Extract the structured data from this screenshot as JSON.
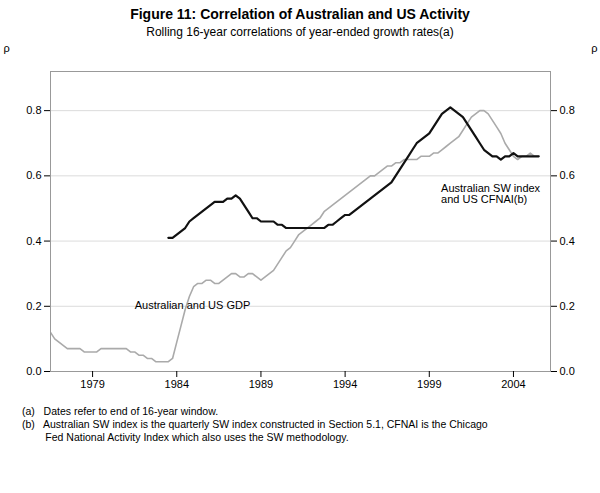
{
  "chart_data": {
    "type": "line",
    "title": "Figure 11: Correlation of Australian and US Activity",
    "subtitle": "Rolling 16-year correlations of year-ended growth rates(a)",
    "ylabel": "ρ",
    "y2label": "ρ",
    "xlim": [
      1976.5,
      2006.2
    ],
    "xticks": [
      1979,
      1984,
      1989,
      1994,
      1999,
      2004
    ],
    "ylim": [
      0.0,
      0.92
    ],
    "yticks": [
      {
        "value": 0.0,
        "label": "0.0"
      },
      0.2,
      0.4,
      0.6,
      0.8
    ],
    "y2lim": [
      0.0,
      0.92
    ],
    "y2ticks": [
      {
        "value": 0.0,
        "label": "0.0"
      },
      0.2,
      0.4,
      0.6,
      0.8
    ],
    "grid": true,
    "series": [
      {
        "color": "#aaaaaa",
        "x": [
          1976.5,
          1976.75,
          1977.0,
          1977.25,
          1977.5,
          1977.75,
          1978.0,
          1978.25,
          1978.5,
          1978.75,
          1979.0,
          1979.25,
          1979.5,
          1979.75,
          1980.0,
          1980.25,
          1980.5,
          1980.75,
          1981.0,
          1981.25,
          1981.5,
          1981.75,
          1982.0,
          1982.25,
          1982.5,
          1982.75,
          1983.0,
          1983.25,
          1983.5,
          1983.75,
          1984.0,
          1984.25,
          1984.5,
          1984.75,
          1985.0,
          1985.25,
          1985.5,
          1985.75,
          1986.0,
          1986.25,
          1986.5,
          1986.75,
          1987.0,
          1987.25,
          1987.5,
          1987.75,
          1988.0,
          1988.25,
          1988.5,
          1988.75,
          1989.0,
          1989.25,
          1989.5,
          1989.75,
          1990.0,
          1990.25,
          1990.5,
          1990.75,
          1991.0,
          1991.25,
          1991.5,
          1991.75,
          1992.0,
          1992.25,
          1992.5,
          1992.75,
          1993.0,
          1993.25,
          1993.5,
          1993.75,
          1994.0,
          1994.25,
          1994.5,
          1994.75,
          1995.0,
          1995.25,
          1995.5,
          1995.75,
          1996.0,
          1996.25,
          1996.5,
          1996.75,
          1997.0,
          1997.25,
          1997.5,
          1997.75,
          1998.0,
          1998.25,
          1998.5,
          1998.75,
          1999.0,
          1999.25,
          1999.5,
          1999.75,
          2000.0,
          2000.25,
          2000.5,
          2000.75,
          2001.0,
          2001.25,
          2001.5,
          2001.75,
          2002.0,
          2002.25,
          2002.5,
          2002.75,
          2003.0,
          2003.25,
          2003.5,
          2003.75,
          2004.0,
          2004.25,
          2004.5,
          2004.75,
          2005.0,
          2005.25,
          2005.5
        ],
        "values": [
          0.12,
          0.1,
          0.09,
          0.08,
          0.07,
          0.07,
          0.07,
          0.07,
          0.06,
          0.06,
          0.06,
          0.06,
          0.07,
          0.07,
          0.07,
          0.07,
          0.07,
          0.07,
          0.07,
          0.06,
          0.06,
          0.05,
          0.05,
          0.04,
          0.04,
          0.03,
          0.03,
          0.03,
          0.03,
          0.04,
          0.09,
          0.14,
          0.19,
          0.23,
          0.26,
          0.27,
          0.27,
          0.28,
          0.28,
          0.27,
          0.27,
          0.28,
          0.29,
          0.3,
          0.3,
          0.29,
          0.29,
          0.3,
          0.3,
          0.29,
          0.28,
          0.29,
          0.3,
          0.31,
          0.33,
          0.35,
          0.37,
          0.38,
          0.4,
          0.42,
          0.43,
          0.44,
          0.45,
          0.46,
          0.47,
          0.49,
          0.5,
          0.51,
          0.52,
          0.53,
          0.54,
          0.55,
          0.56,
          0.57,
          0.58,
          0.59,
          0.6,
          0.6,
          0.61,
          0.62,
          0.63,
          0.63,
          0.64,
          0.64,
          0.65,
          0.65,
          0.65,
          0.65,
          0.66,
          0.66,
          0.66,
          0.67,
          0.67,
          0.68,
          0.69,
          0.7,
          0.71,
          0.72,
          0.74,
          0.76,
          0.78,
          0.79,
          0.8,
          0.8,
          0.79,
          0.77,
          0.75,
          0.73,
          0.7,
          0.68,
          0.66,
          0.65,
          0.66,
          0.66,
          0.67,
          0.66,
          0.66
        ]
      },
      {
        "color": "#111111",
        "x": [
          1983.5,
          1983.75,
          1984.0,
          1984.25,
          1984.5,
          1984.75,
          1985.0,
          1985.25,
          1985.5,
          1985.75,
          1986.0,
          1986.25,
          1986.5,
          1986.75,
          1987.0,
          1987.25,
          1987.5,
          1987.75,
          1988.0,
          1988.25,
          1988.5,
          1988.75,
          1989.0,
          1989.25,
          1989.5,
          1989.75,
          1990.0,
          1990.25,
          1990.5,
          1990.75,
          1991.0,
          1991.25,
          1991.5,
          1991.75,
          1992.0,
          1992.25,
          1992.5,
          1992.75,
          1993.0,
          1993.25,
          1993.5,
          1993.75,
          1994.0,
          1994.25,
          1994.5,
          1994.75,
          1995.0,
          1995.25,
          1995.5,
          1995.75,
          1996.0,
          1996.25,
          1996.5,
          1996.75,
          1997.0,
          1997.25,
          1997.5,
          1997.75,
          1998.0,
          1998.25,
          1998.5,
          1998.75,
          1999.0,
          1999.25,
          1999.5,
          1999.75,
          2000.0,
          2000.25,
          2000.5,
          2000.75,
          2001.0,
          2001.25,
          2001.5,
          2001.75,
          2002.0,
          2002.25,
          2002.5,
          2002.75,
          2003.0,
          2003.25,
          2003.5,
          2003.75,
          2004.0,
          2004.25,
          2004.5,
          2004.75,
          2005.0,
          2005.25,
          2005.5
        ],
        "values": [
          0.41,
          0.41,
          0.42,
          0.43,
          0.44,
          0.46,
          0.47,
          0.48,
          0.49,
          0.5,
          0.51,
          0.52,
          0.52,
          0.52,
          0.53,
          0.53,
          0.54,
          0.53,
          0.51,
          0.49,
          0.47,
          0.47,
          0.46,
          0.46,
          0.46,
          0.46,
          0.45,
          0.45,
          0.44,
          0.44,
          0.44,
          0.44,
          0.44,
          0.44,
          0.44,
          0.44,
          0.44,
          0.44,
          0.45,
          0.45,
          0.46,
          0.47,
          0.48,
          0.48,
          0.49,
          0.5,
          0.51,
          0.52,
          0.53,
          0.54,
          0.55,
          0.56,
          0.57,
          0.58,
          0.6,
          0.62,
          0.64,
          0.66,
          0.68,
          0.7,
          0.71,
          0.72,
          0.73,
          0.75,
          0.77,
          0.79,
          0.8,
          0.81,
          0.8,
          0.79,
          0.78,
          0.76,
          0.74,
          0.72,
          0.7,
          0.68,
          0.67,
          0.66,
          0.66,
          0.65,
          0.66,
          0.66,
          0.67,
          0.66,
          0.66,
          0.66,
          0.66,
          0.66,
          0.66
        ]
      }
    ],
    "annotations": [
      {
        "text": "Australian and US GDP",
        "x": 1981.5,
        "y": 0.215
      },
      {
        "text": "Australian SW index\nand US CFNAI(b)",
        "x": 1999.7,
        "y": 0.575
      }
    ],
    "notes": [
      "(a)   Dates refer to end of 16-year window.",
      "(b)   Australian SW index is the quarterly SW index constructed in Section 5.1, CFNAI is the Chicago\n        Fed National Activity Index which also uses the SW methodology."
    ]
  }
}
